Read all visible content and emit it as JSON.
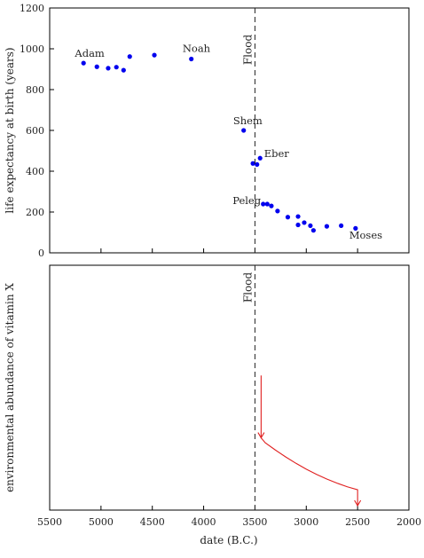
{
  "chart_data": [
    {
      "type": "scatter",
      "title": "",
      "xlabel": "",
      "ylabel": "life expectancy at birth (years)",
      "xlim": [
        5500,
        2000
      ],
      "ylim": [
        0,
        1200
      ],
      "yticks": [
        0,
        200,
        400,
        600,
        800,
        1000,
        1200
      ],
      "grid": false,
      "points": [
        {
          "x": 5170,
          "y": 930
        },
        {
          "x": 5040,
          "y": 912
        },
        {
          "x": 4930,
          "y": 905
        },
        {
          "x": 4850,
          "y": 910
        },
        {
          "x": 4780,
          "y": 895
        },
        {
          "x": 4720,
          "y": 962
        },
        {
          "x": 4480,
          "y": 969
        },
        {
          "x": 4120,
          "y": 950
        },
        {
          "x": 3610,
          "y": 600
        },
        {
          "x": 3520,
          "y": 438
        },
        {
          "x": 3480,
          "y": 433
        },
        {
          "x": 3450,
          "y": 464
        },
        {
          "x": 3420,
          "y": 239
        },
        {
          "x": 3380,
          "y": 239
        },
        {
          "x": 3340,
          "y": 230
        },
        {
          "x": 3280,
          "y": 205
        },
        {
          "x": 3180,
          "y": 175
        },
        {
          "x": 3080,
          "y": 178
        },
        {
          "x": 3080,
          "y": 137
        },
        {
          "x": 3020,
          "y": 148
        },
        {
          "x": 2960,
          "y": 133
        },
        {
          "x": 2930,
          "y": 110
        },
        {
          "x": 2800,
          "y": 130
        },
        {
          "x": 2660,
          "y": 133
        },
        {
          "x": 2520,
          "y": 120
        }
      ],
      "annotations": [
        {
          "text": "Adam",
          "x": 5110,
          "y": 960
        },
        {
          "text": "Noah",
          "x": 4070,
          "y": 985
        },
        {
          "text": "Shem",
          "x": 3570,
          "y": 630
        },
        {
          "text": "Eber",
          "x": 3290,
          "y": 470
        },
        {
          "text": "Peleg",
          "x": 3580,
          "y": 240
        },
        {
          "text": "Moses",
          "x": 2420,
          "y": 70
        }
      ],
      "vline": {
        "x": 3500,
        "label": "Flood"
      }
    },
    {
      "type": "line",
      "title": "",
      "xlabel": "date (B.C.)",
      "ylabel": "environmental abundance of vitamin X",
      "xlim": [
        5500,
        2000
      ],
      "xticks": [
        5500,
        5000,
        4500,
        4000,
        3500,
        3000,
        2500,
        2000
      ],
      "ylim": [
        0,
        100
      ],
      "grid": false,
      "series": [
        {
          "color": "#e02020",
          "x": [
            3440,
            3440,
            3400,
            3300,
            3200,
            3100,
            3000,
            2900,
            2800,
            2700,
            2600,
            2500,
            2500
          ],
          "y": [
            55,
            29.5,
            27.5,
            24.5,
            21.7,
            19.1,
            16.7,
            14.6,
            12.7,
            11.0,
            9.5,
            8.3,
            1.8
          ]
        }
      ],
      "vline": {
        "x": 3500,
        "label": "Flood"
      }
    }
  ],
  "colors": {
    "points": "#0000ee",
    "curve": "#e02020",
    "axes": "#000000"
  }
}
